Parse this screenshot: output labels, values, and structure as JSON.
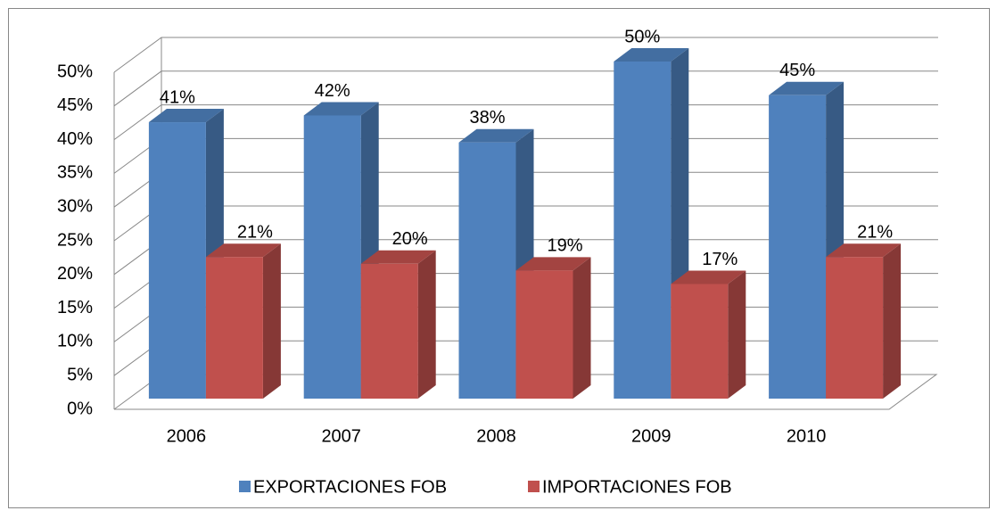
{
  "chart_data": {
    "type": "bar3d",
    "categories": [
      "2006",
      "2007",
      "2008",
      "2009",
      "2010"
    ],
    "series": [
      {
        "name": "EXPORTACIONES FOB",
        "color": "#4F81BD",
        "values": [
          41,
          42,
          38,
          50,
          45
        ],
        "value_labels": [
          "41%",
          "42%",
          "38%",
          "50%",
          "45%"
        ]
      },
      {
        "name": "IMPORTACIONES FOB",
        "color": "#C0504D",
        "values": [
          21,
          20,
          19,
          17,
          21
        ],
        "value_labels": [
          "21%",
          "20%",
          "19%",
          "17%",
          "21%"
        ]
      }
    ],
    "ylim": [
      0,
      50
    ],
    "yticks": [
      {
        "value": 0,
        "label": "0%"
      },
      {
        "value": 5,
        "label": "5%"
      },
      {
        "value": 10,
        "label": "10%"
      },
      {
        "value": 15,
        "label": "15%"
      },
      {
        "value": 20,
        "label": "20%"
      },
      {
        "value": 25,
        "label": "25%"
      },
      {
        "value": 30,
        "label": "30%"
      },
      {
        "value": 35,
        "label": "35%"
      },
      {
        "value": 40,
        "label": "40%"
      },
      {
        "value": 45,
        "label": "45%"
      },
      {
        "value": 50,
        "label": "50%"
      }
    ],
    "grid": true,
    "legend": "bottom"
  }
}
